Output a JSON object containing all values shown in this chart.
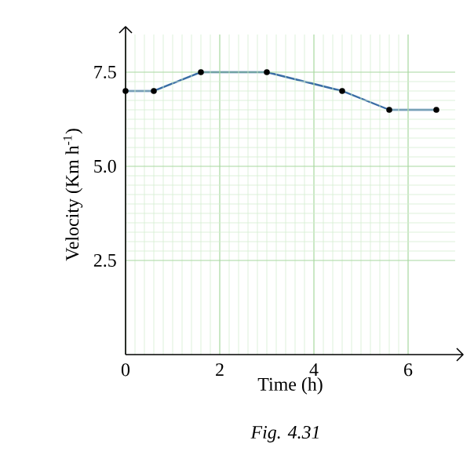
{
  "chart_data": {
    "type": "line",
    "xlabel": "Time (h)",
    "ylabel": "Velocity (Km h$^{-1}$)",
    "annotations": [
      "Fig. 4.31"
    ],
    "x": [
      0,
      0.6,
      1.6,
      3.0,
      4.6,
      5.6,
      6.6
    ],
    "series": [
      {
        "color": "#3a6ea5",
        "values": [
          7.0,
          7.0,
          7.5,
          7.5,
          7.0,
          6.5,
          6.5
        ]
      }
    ],
    "xlim": [
      0,
      7
    ],
    "ylim": [
      0,
      8.5
    ],
    "xticks": [
      0,
      2,
      4,
      6
    ],
    "yticks": [
      2.5,
      {
        "value": 5,
        "label": "5.0"
      },
      7.5
    ],
    "grid": true,
    "marker": "circle",
    "line_style": "solid"
  }
}
